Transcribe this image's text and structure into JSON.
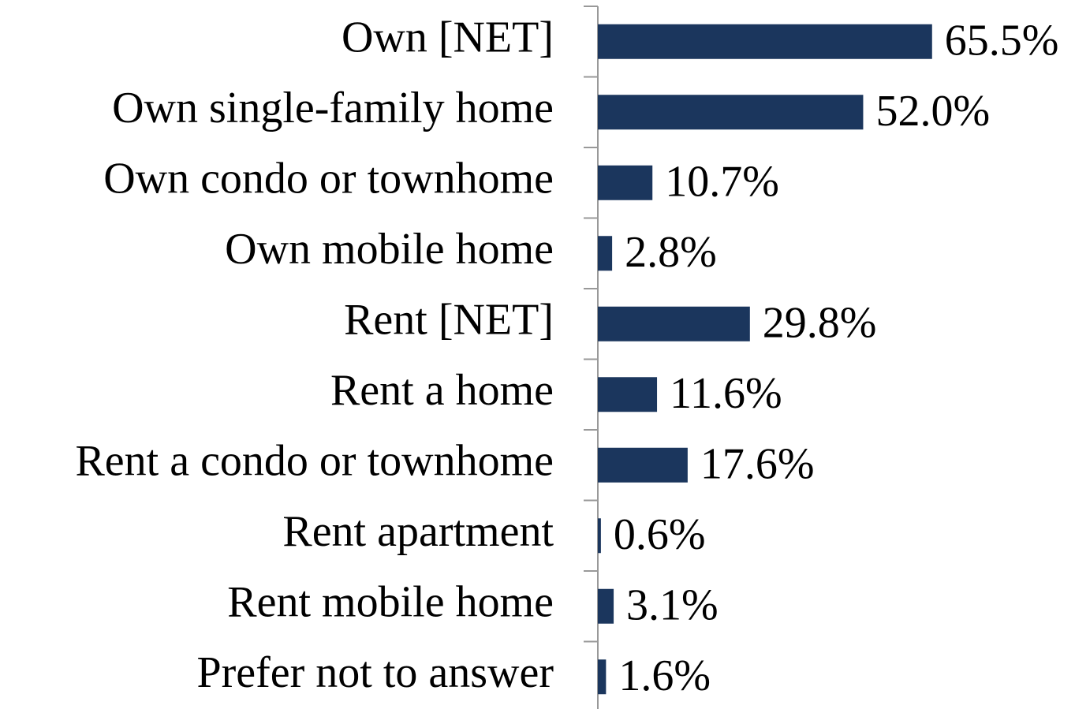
{
  "chart_data": {
    "type": "bar",
    "orientation": "horizontal",
    "color": "#1b365d",
    "categories": [
      "Own [NET]",
      "Own single-family home",
      "Own condo or townhome",
      "Own mobile home",
      "Rent [NET]",
      "Rent a home",
      "Rent a condo or townhome",
      "Rent apartment",
      "Rent mobile home",
      "Prefer not to answer"
    ],
    "values": [
      65.5,
      52.0,
      10.7,
      2.8,
      29.8,
      11.6,
      17.6,
      0.6,
      3.1,
      1.6
    ],
    "value_labels": [
      "65.5%",
      "52.0%",
      "10.7%",
      "2.8%",
      "29.8%",
      "11.6%",
      "17.6%",
      "0.6%",
      "3.1%",
      "1.6%"
    ]
  }
}
